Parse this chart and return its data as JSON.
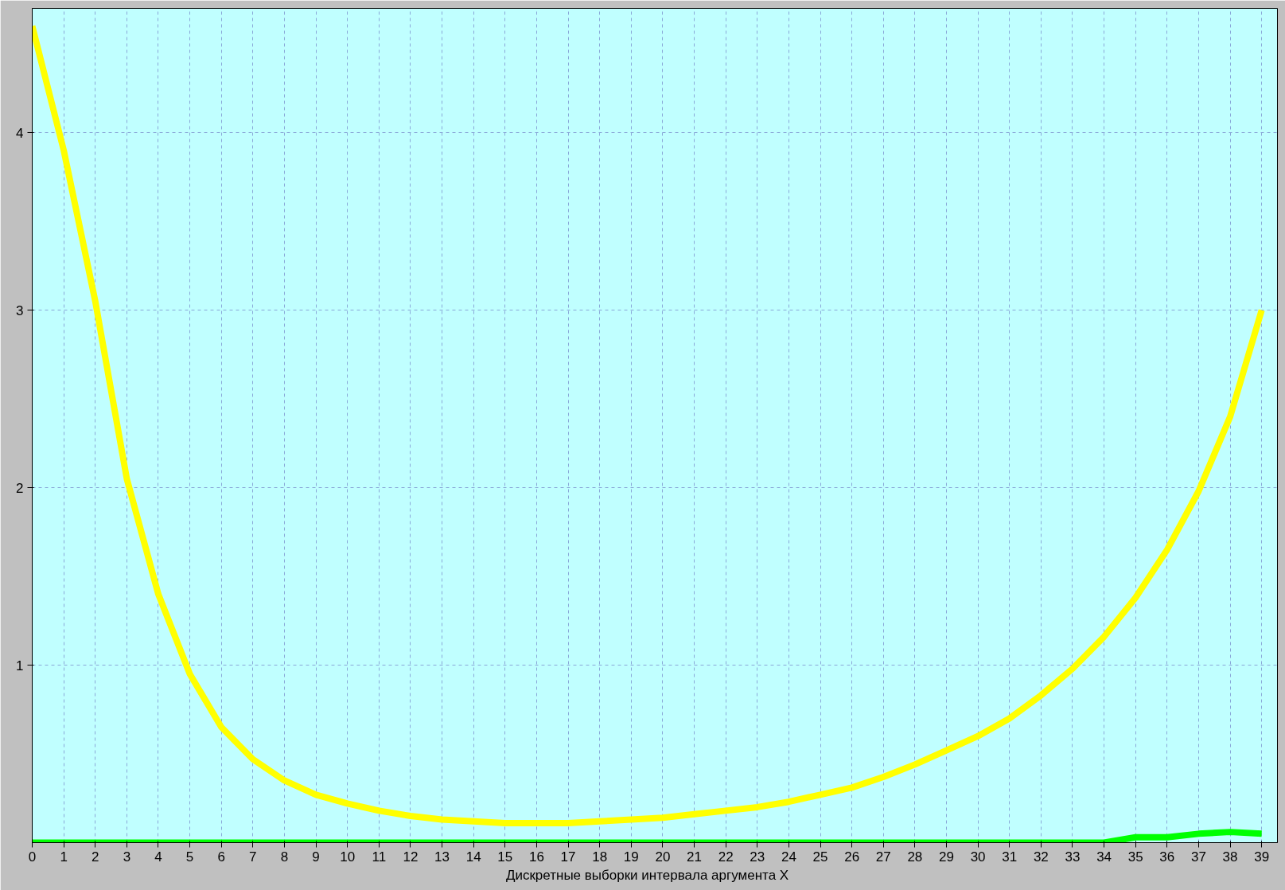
{
  "chart_data": {
    "type": "line",
    "xlabel": "Дискретные  выборки  интервала  аргумента  X",
    "x": [
      0,
      1,
      2,
      3,
      4,
      5,
      6,
      7,
      8,
      9,
      10,
      11,
      12,
      13,
      14,
      15,
      16,
      17,
      18,
      19,
      20,
      21,
      22,
      23,
      24,
      25,
      26,
      27,
      28,
      29,
      30,
      31,
      32,
      33,
      34,
      35,
      36,
      37,
      38,
      39
    ],
    "series": [
      {
        "color": "#ffff00",
        "values": [
          4.6,
          3.9,
          3.05,
          2.05,
          1.4,
          0.95,
          0.65,
          0.47,
          0.35,
          0.27,
          0.22,
          0.18,
          0.15,
          0.13,
          0.12,
          0.11,
          0.11,
          0.11,
          0.12,
          0.13,
          0.14,
          0.16,
          0.18,
          0.2,
          0.23,
          0.27,
          0.31,
          0.37,
          0.44,
          0.52,
          0.6,
          0.7,
          0.83,
          0.98,
          1.16,
          1.38,
          1.65,
          1.98,
          2.4,
          3.0
        ]
      },
      {
        "color": "#00ff00",
        "values": [
          0,
          0,
          0,
          0,
          0,
          0,
          0,
          0,
          0,
          0,
          0,
          0,
          0,
          0,
          0,
          0,
          0,
          0,
          0,
          0,
          0,
          0,
          0,
          0,
          0,
          0,
          0,
          0,
          0,
          0,
          0,
          0,
          0,
          0,
          0,
          0.03,
          0.03,
          0.05,
          0.06,
          0.05
        ]
      }
    ],
    "xlim": [
      0,
      39.5
    ],
    "ylim": [
      0,
      4.7
    ],
    "xticks": [
      0,
      1,
      2,
      3,
      4,
      5,
      6,
      7,
      8,
      9,
      10,
      11,
      12,
      13,
      14,
      15,
      16,
      17,
      18,
      19,
      20,
      21,
      22,
      23,
      24,
      25,
      26,
      27,
      28,
      29,
      30,
      31,
      32,
      33,
      34,
      35,
      36,
      37,
      38,
      39
    ],
    "yticks": [
      1,
      2,
      3,
      4
    ],
    "grid": true,
    "marker": "none",
    "line_style": "solid"
  }
}
